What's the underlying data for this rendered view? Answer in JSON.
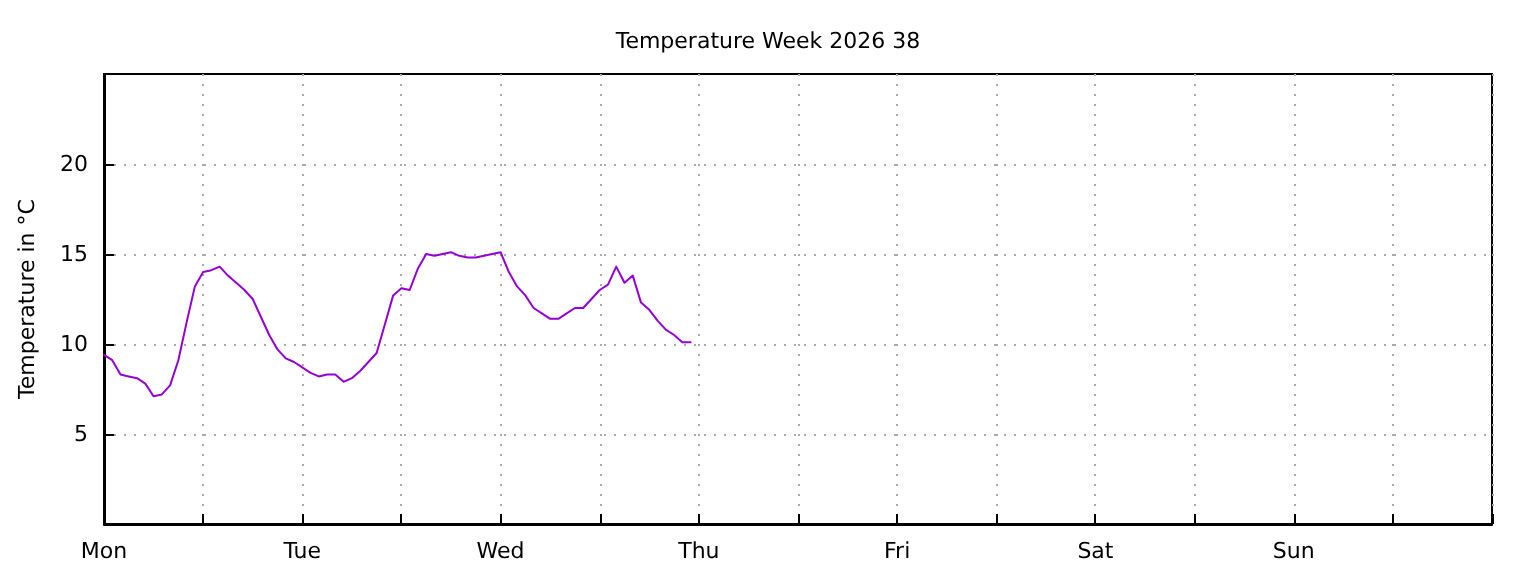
{
  "chart_data": {
    "type": "line",
    "title": "Temperature Week 2026 38",
    "ylabel": "Temperature in °C",
    "categories": [
      "Mon",
      null,
      null,
      null,
      null,
      null,
      null,
      null,
      null,
      null,
      null,
      null,
      null,
      null,
      null,
      null,
      null,
      null,
      null,
      null,
      null,
      null,
      null,
      null,
      "Tue",
      null,
      null,
      null,
      null,
      null,
      null,
      null,
      null,
      null,
      null,
      null,
      null,
      null,
      null,
      null,
      null,
      null,
      null,
      null,
      null,
      null,
      null,
      null,
      "Wed",
      null,
      null,
      null,
      null,
      null,
      null,
      null,
      null,
      null,
      null,
      null,
      null,
      null,
      null,
      null,
      null,
      null,
      null,
      null,
      null,
      null,
      null,
      null,
      "Thu",
      null,
      null,
      null,
      null,
      null,
      null,
      null,
      null,
      null,
      null,
      null,
      null,
      null,
      null,
      null,
      null,
      null,
      null,
      null,
      null,
      null,
      null,
      null,
      "Fri",
      null,
      null,
      null,
      null,
      null,
      null,
      null,
      null,
      null,
      null,
      null,
      null,
      null,
      null,
      null,
      null,
      null,
      null,
      null,
      null,
      null,
      null,
      null,
      "Sat",
      null,
      null,
      null,
      null,
      null,
      null,
      null,
      null,
      null,
      null,
      null,
      null,
      null,
      null,
      null,
      null,
      null,
      null,
      null,
      null,
      null,
      null,
      null,
      "Sun",
      null,
      null,
      null,
      null,
      null,
      null,
      null,
      null,
      null,
      null,
      null,
      null,
      null,
      null,
      null,
      null,
      null,
      null,
      null,
      null,
      null,
      null,
      null,
      null
    ],
    "series": [
      {
        "color": "#9400d3",
        "values": [
          9.4,
          9.1,
          8.3,
          8.2,
          8.1,
          7.8,
          7.1,
          7.2,
          7.7,
          9.1,
          11.2,
          13.2,
          14.0,
          14.1,
          14.3,
          13.8,
          13.4,
          13.0,
          12.5,
          11.5,
          10.5,
          9.7,
          9.2,
          9.0,
          8.7,
          8.4,
          8.2,
          8.3,
          8.3,
          7.9,
          8.1,
          8.5,
          9.0,
          9.5,
          11.1,
          12.7,
          13.1,
          13.0,
          14.2,
          15.0,
          14.9,
          15.0,
          15.1,
          14.9,
          14.8,
          14.8,
          14.9,
          15.0,
          15.1,
          14.0,
          13.2,
          12.7,
          12.0,
          11.7,
          11.4,
          11.4,
          11.7,
          12.0,
          12.0,
          12.5,
          13.0,
          13.3,
          14.3,
          13.4,
          13.8,
          12.3,
          11.9,
          11.3,
          10.8,
          10.5,
          10.1,
          10.1,
          null,
          null,
          null,
          null,
          null,
          null,
          null,
          null,
          null,
          null,
          null,
          null,
          null,
          null,
          null,
          null,
          null,
          null,
          null,
          null,
          null,
          null,
          null,
          null,
          null,
          null,
          null,
          null,
          null,
          null,
          null,
          null,
          null,
          null,
          null,
          null,
          null,
          null,
          null,
          null,
          null,
          null,
          null,
          null,
          null,
          null,
          null,
          null,
          null,
          null,
          null,
          null,
          null,
          null,
          null,
          null,
          null,
          null,
          null,
          null,
          null,
          null,
          null,
          null,
          null,
          null,
          null,
          null,
          null,
          null,
          null,
          null,
          null,
          null,
          null,
          null,
          null,
          null,
          null,
          null,
          null,
          null,
          null,
          null,
          null,
          null,
          null,
          null,
          null,
          null,
          null,
          null,
          null,
          null,
          null,
          null,
          null
        ]
      }
    ],
    "ylim": [
      0,
      25
    ],
    "yticks": [
      5,
      10,
      15,
      20
    ],
    "grid": true,
    "marker": "none",
    "line_style": "solid"
  }
}
